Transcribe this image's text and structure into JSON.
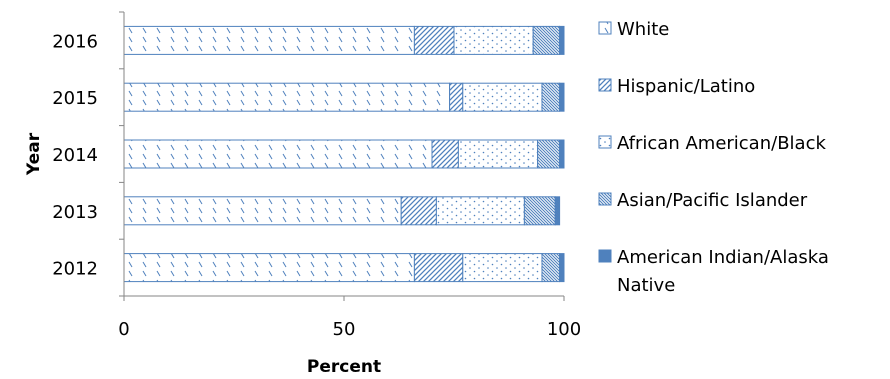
{
  "chart_data": {
    "type": "bar",
    "orientation": "horizontal",
    "stacked": true,
    "categories": [
      "2012",
      "2013",
      "2014",
      "2015",
      "2016"
    ],
    "series": [
      {
        "name": "White",
        "values": [
          66,
          63,
          70,
          74,
          66
        ],
        "color": "#4F81BD",
        "pattern": "dashed-diagonal"
      },
      {
        "name": "Hispanic/Latino",
        "values": [
          11,
          8,
          6,
          3,
          9
        ],
        "color": "#4F81BD",
        "pattern": "diagonal-hatch"
      },
      {
        "name": "African American/Black",
        "values": [
          18,
          20,
          18,
          18,
          18
        ],
        "color": "#4F81BD",
        "pattern": "dots"
      },
      {
        "name": "Asian/Pacific Islander",
        "values": [
          4,
          7,
          5,
          4,
          6
        ],
        "color": "#4F81BD",
        "pattern": "dense-hatch"
      },
      {
        "name": "American Indian/Alaska Native",
        "values": [
          1,
          1,
          1,
          1,
          1
        ],
        "color": "#4F81BD",
        "pattern": "solid"
      }
    ],
    "xlabel": "Percent",
    "ylabel": "Year",
    "xlim": [
      0,
      100
    ],
    "xticks": [
      "0",
      "50",
      "100"
    ],
    "grid": false,
    "legend_position": "right"
  }
}
